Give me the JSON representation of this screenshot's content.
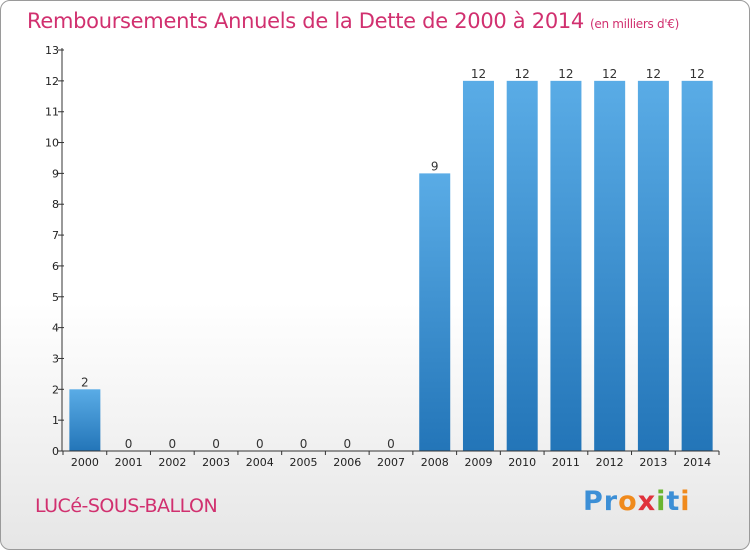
{
  "header": {
    "title": "Remboursements Annuels de la Dette de 2000 à 2014",
    "unit": "(en milliers d'€)"
  },
  "footer": {
    "commune": "LUCé-SOUS-BALLON",
    "logo_letters": [
      "P",
      "r",
      "o",
      "x",
      "i",
      "t",
      "i"
    ]
  },
  "colors": {
    "title": "#d1306f",
    "bar_top": "#5aace6",
    "bar_bottom": "#2375b8",
    "logo": [
      "#3c8fd6",
      "#3c8fd6",
      "#f08a1c",
      "#e0323c",
      "#6ab530",
      "#3c8fd6",
      "#f08a1c"
    ]
  },
  "chart_data": {
    "type": "bar",
    "categories": [
      "2000",
      "2001",
      "2002",
      "2003",
      "2004",
      "2005",
      "2006",
      "2007",
      "2008",
      "2009",
      "2010",
      "2011",
      "2012",
      "2013",
      "2014"
    ],
    "values": [
      2,
      0,
      0,
      0,
      0,
      0,
      0,
      0,
      9,
      12,
      12,
      12,
      12,
      12,
      12
    ],
    "title": "Remboursements Annuels de la Dette de 2000 à 2014",
    "ylim": [
      0,
      13
    ],
    "yticks": [
      0,
      1,
      2,
      3,
      4,
      5,
      6,
      7,
      8,
      9,
      10,
      11,
      12,
      13
    ],
    "grid": false
  }
}
